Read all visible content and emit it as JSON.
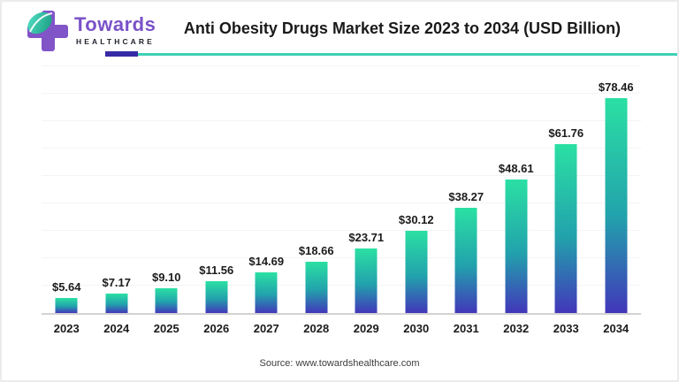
{
  "brand": {
    "name": "Towards",
    "sub": "HEALTHCARE"
  },
  "header": {
    "title": "Anti Obesity Drugs Market Size 2023 to 2034 (USD Billion)"
  },
  "chart_data": {
    "type": "bar",
    "title": "Anti Obesity Drugs Market Size 2023 to 2034 (USD Billion)",
    "categories": [
      "2023",
      "2024",
      "2025",
      "2026",
      "2027",
      "2028",
      "2029",
      "2030",
      "2031",
      "2032",
      "2033",
      "2034"
    ],
    "values": [
      5.64,
      7.17,
      9.1,
      11.56,
      14.69,
      18.66,
      23.71,
      30.12,
      38.27,
      48.61,
      61.76,
      78.46
    ],
    "value_labels": [
      "$5.64",
      "$7.17",
      "$9.10",
      "$11.56",
      "$14.69",
      "$18.66",
      "$23.71",
      "$30.12",
      "$38.27",
      "$48.61",
      "$61.76",
      "$78.46"
    ],
    "xlabel": "",
    "ylabel": "",
    "ylim": [
      0,
      90
    ],
    "grid": true,
    "gridline_step": 10,
    "legend": "none",
    "bar_gradient_top": "#2be0a3",
    "bar_gradient_mid": "#22a2ac",
    "bar_gradient_bottom": "#4237ba"
  },
  "footer": {
    "source": "Source: www.towardshealthcare.com"
  },
  "colors": {
    "brand_purple": "#7a52c8",
    "rule_purple": "#372aa5",
    "rule_teal": "#3fd1b4",
    "leaf_teal_light": "#55e2c6",
    "leaf_teal_dark": "#16987e",
    "cross_purple": "#8154c8"
  }
}
